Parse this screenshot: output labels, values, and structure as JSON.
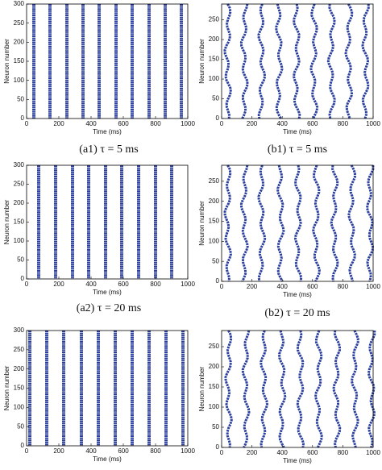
{
  "chart_data": [
    {
      "type": "raster",
      "caption": "(a1) τ = 5 ms",
      "x_label": "Time (ms)",
      "y_label": "Neuron number",
      "color": "#2b3f9e",
      "xlim": [
        0,
        1000
      ],
      "xticks": [
        0,
        200,
        400,
        600,
        800,
        1000
      ],
      "ylim": [
        0,
        300
      ],
      "yticks": [
        0,
        50,
        100,
        150,
        200,
        250,
        300
      ],
      "x": [
        45,
        145,
        250,
        350,
        450,
        555,
        655,
        760,
        860,
        960
      ]
    },
    {
      "type": "raster",
      "caption": "(b1) τ = 5 ms",
      "x_label": "Time (ms)",
      "y_label": "Neuron number",
      "color": "#2b3f9e",
      "xlim": [
        0,
        1000
      ],
      "xticks": [
        0,
        200,
        400,
        600,
        800,
        1000
      ],
      "ylim": [
        0,
        290
      ],
      "yticks": [
        0,
        50,
        100,
        150,
        200,
        250
      ],
      "x": [
        40,
        150,
        265,
        380,
        495,
        610,
        725,
        840,
        950
      ]
    },
    {
      "type": "raster",
      "caption": "(a2) τ = 20 ms",
      "x_label": "Time (ms)",
      "y_label": "Neuron number",
      "color": "#2b3f9e",
      "xlim": [
        0,
        1000
      ],
      "xticks": [
        0,
        200,
        400,
        600,
        800,
        1000
      ],
      "ylim": [
        0,
        300
      ],
      "yticks": [
        0,
        50,
        100,
        150,
        200,
        250,
        300
      ],
      "x": [
        75,
        180,
        285,
        385,
        490,
        590,
        695,
        800,
        900
      ]
    },
    {
      "type": "raster",
      "caption": "(b2) τ = 20 ms",
      "x_label": "Time (ms)",
      "y_label": "Neuron number",
      "color": "#2b3f9e",
      "xlim": [
        0,
        1000
      ],
      "xticks": [
        0,
        200,
        400,
        600,
        800,
        1000
      ],
      "ylim": [
        0,
        290
      ],
      "yticks": [
        0,
        50,
        100,
        150,
        200,
        250
      ],
      "x": [
        40,
        150,
        265,
        390,
        505,
        625,
        745,
        860,
        980
      ]
    },
    {
      "type": "raster",
      "x_label": "Time (ms)",
      "y_label": "Neuron number",
      "color": "#2b3f9e",
      "xlim": [
        0,
        1000
      ],
      "xticks": [
        0,
        200,
        400,
        600,
        800,
        1000
      ],
      "ylim": [
        0,
        300
      ],
      "yticks": [
        0,
        50,
        100,
        150,
        200,
        250,
        300
      ],
      "x": [
        20,
        125,
        230,
        340,
        445,
        550,
        655,
        760,
        865,
        970
      ]
    },
    {
      "type": "raster",
      "x_label": "Time (ms)",
      "y_label": "Neuron number",
      "color": "#2b3f9e",
      "xlim": [
        0,
        1000
      ],
      "xticks": [
        0,
        200,
        400,
        600,
        800,
        1000
      ],
      "ylim": [
        0,
        290
      ],
      "yticks": [
        0,
        50,
        100,
        150,
        200,
        250
      ],
      "x": [
        45,
        160,
        280,
        400,
        520,
        640,
        760,
        880,
        990
      ]
    }
  ]
}
